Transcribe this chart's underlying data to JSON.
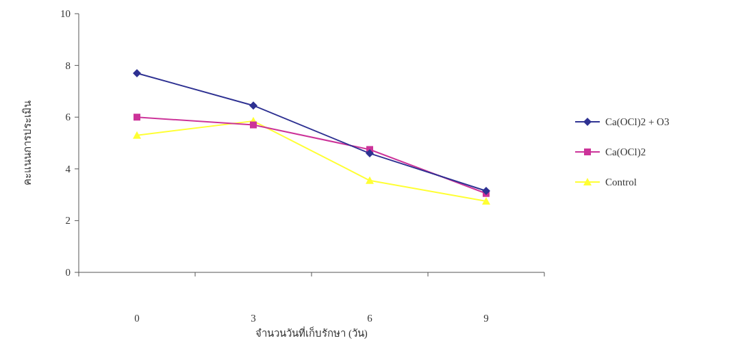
{
  "chart_data": {
    "type": "line",
    "xlabel": "จำนวนวันที่เก็บรักษา (วัน)",
    "ylabel": "คะแนนการประเมิน",
    "categories": [
      "0",
      "3",
      "6",
      "9"
    ],
    "ylim": [
      0,
      10
    ],
    "yticks": [
      0,
      2,
      4,
      6,
      8,
      10
    ],
    "grid": false,
    "legend": "right",
    "series": [
      {
        "name": "Ca(OCl)2 + O3",
        "color": "#2e3192",
        "marker": "diamond",
        "values": [
          7.7,
          6.45,
          4.6,
          3.15
        ]
      },
      {
        "name": "Ca(OCl)2",
        "color": "#cc3399",
        "marker": "square",
        "values": [
          6.0,
          5.7,
          4.75,
          3.05
        ]
      },
      {
        "name": "Control",
        "color": "#ffff33",
        "marker": "triangle",
        "values": [
          5.3,
          5.85,
          3.55,
          2.75
        ]
      }
    ]
  }
}
